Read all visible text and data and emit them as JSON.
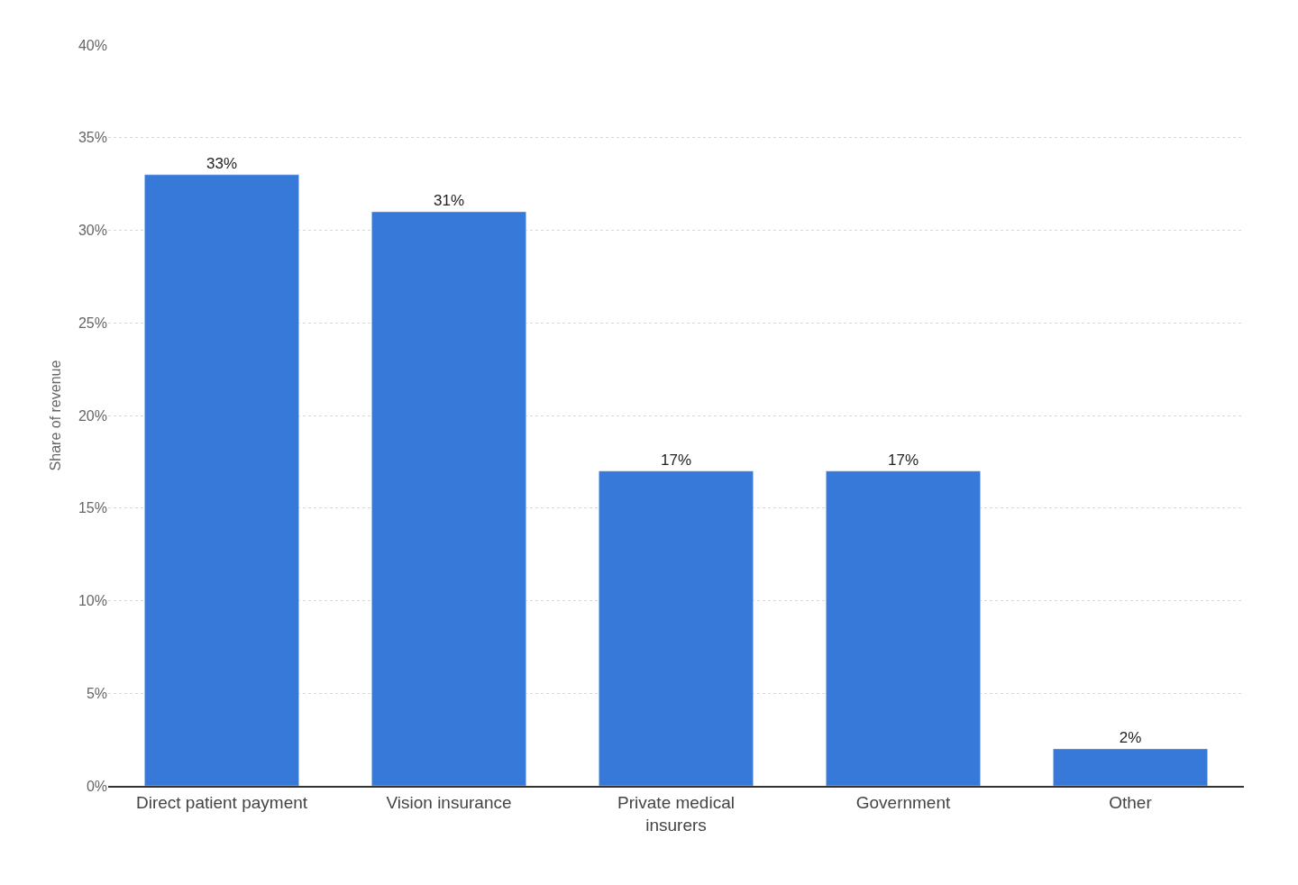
{
  "chart_data": {
    "type": "bar",
    "ylabel": "Share of revenue",
    "categories": [
      "Direct patient payment",
      "Vision insurance",
      "Private medical\ninsurers",
      "Government",
      "Other"
    ],
    "values": [
      33,
      31,
      17,
      17,
      2
    ],
    "color": "#3679d8",
    "value_labels": [
      "33%",
      "31%",
      "17%",
      "17%",
      "2%"
    ],
    "ylim": [
      0,
      40
    ],
    "yticks": [
      {
        "value": 0,
        "label": "0%"
      },
      {
        "value": 5,
        "label": "5%"
      },
      {
        "value": 10,
        "label": "10%"
      },
      {
        "value": 15,
        "label": "15%"
      },
      {
        "value": 20,
        "label": "20%"
      },
      {
        "value": 25,
        "label": "25%"
      },
      {
        "value": 30,
        "label": "30%"
      },
      {
        "value": 35,
        "label": "35%"
      },
      {
        "value": 40,
        "label": "40%"
      }
    ],
    "grid": "y",
    "legend": false
  }
}
